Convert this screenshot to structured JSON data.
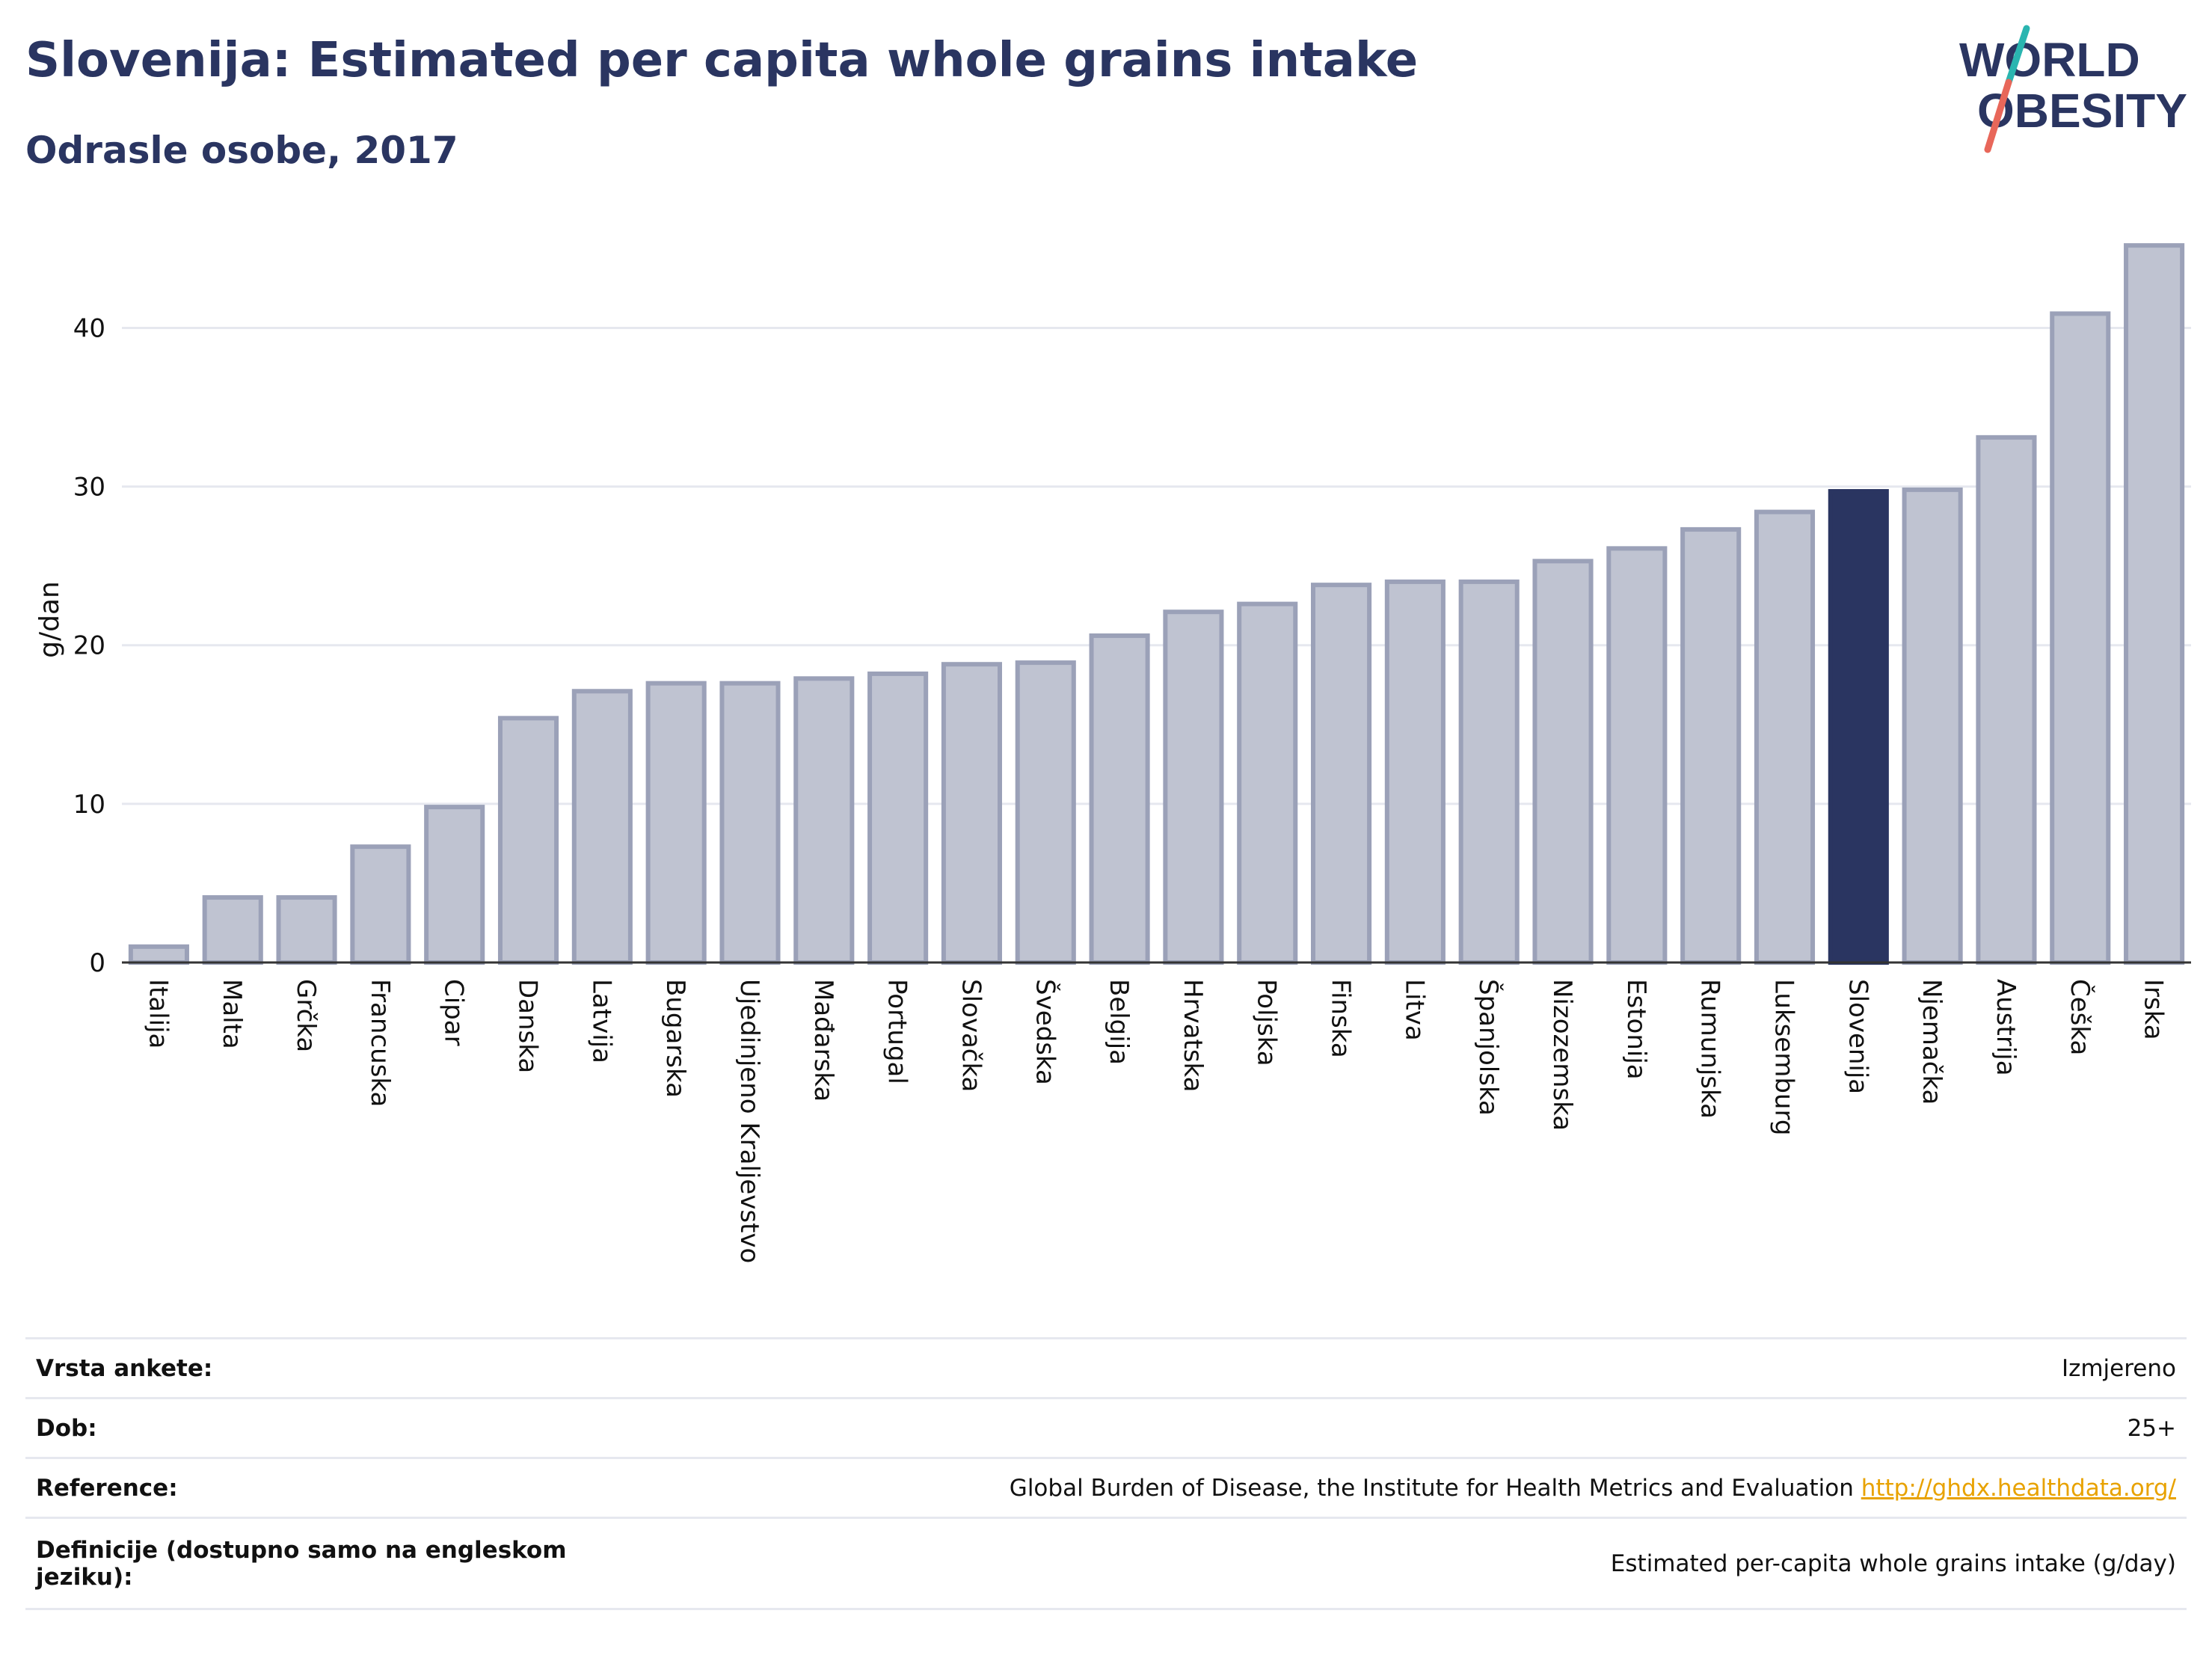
{
  "title": "Slovenija: Estimated per capita whole grains intake",
  "subtitle": "Odrasle osobe, 2017",
  "logo": {
    "line1": "WORLD",
    "line2": "OBESITY"
  },
  "colors": {
    "bar": "#bfc3d1",
    "bar_stroke": "#9ba1b8",
    "highlight": "#2a3561",
    "title": "#2a3561",
    "grid": "#e6e8ef",
    "link": "#e8a200"
  },
  "chart_data": {
    "type": "bar",
    "title": "Slovenija: Estimated per capita whole grains intake",
    "subtitle": "Odrasle osobe, 2017",
    "xlabel": "",
    "ylabel": "g/dan",
    "ylim": [
      0,
      47
    ],
    "yticks": [
      0,
      10,
      20,
      30,
      40
    ],
    "grid": true,
    "highlight": "Slovenija",
    "categories": [
      "Italija",
      "Malta",
      "Grčka",
      "Francuska",
      "Cipar",
      "Danska",
      "Latvija",
      "Bugarska",
      "Ujedinjeno Kraljevstvo",
      "Mađarska",
      "Portugal",
      "Slovačka",
      "Švedska",
      "Belgija",
      "Hrvatska",
      "Poljska",
      "Finska",
      "Litva",
      "Španjolska",
      "Nizozemska",
      "Estonija",
      "Rumunjska",
      "Luksemburg",
      "Slovenija",
      "Njemačka",
      "Austrija",
      "Češka",
      "Irska"
    ],
    "values": [
      1.0,
      4.1,
      4.1,
      7.3,
      9.8,
      15.4,
      17.1,
      17.6,
      17.6,
      17.9,
      18.2,
      18.8,
      18.9,
      20.6,
      22.1,
      22.6,
      23.8,
      24.0,
      24.0,
      25.3,
      26.1,
      27.3,
      28.4,
      29.7,
      29.8,
      33.1,
      40.9,
      45.2
    ]
  },
  "info": [
    {
      "key": "Vrsta ankete:",
      "value": "Izmjereno"
    },
    {
      "key": "Dob:",
      "value": "25+"
    },
    {
      "key": "Reference:",
      "value": "Global Burden of Disease, the Institute for Health Metrics and Evaluation",
      "link": "http://ghdx.healthdata.org/"
    },
    {
      "key": "Definicije (dostupno samo na engleskom jeziku):",
      "value": "Estimated per-capita whole grains intake (g/day)"
    }
  ]
}
